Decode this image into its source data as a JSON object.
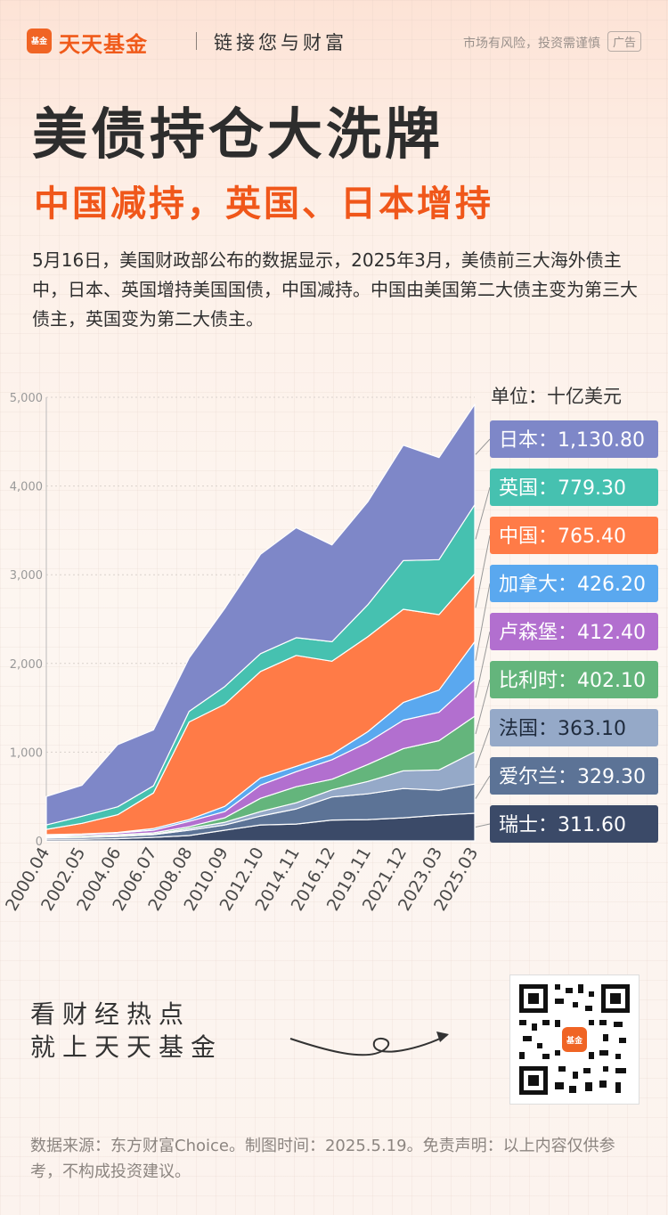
{
  "header": {
    "logo_text": "基金",
    "brand": "天天基金",
    "slogan": "链接您与财富",
    "risk_notice": "市场有风险，投资需谨慎",
    "ad_label": "广告"
  },
  "title": "美债持仓大洗牌",
  "subtitle": "中国减持，英国、日本增持",
  "description": "5月16日，美国财政部公布的数据显示，2025年3月，美债前三大海外债主中，日本、英国增持美国国债，中国减持。中国由美国第二大债主变为第三大债主，英国变为第二大债主。",
  "colors": {
    "japan": "#7e87c8",
    "uk": "#46c1b0",
    "china": "#ff7b47",
    "canada": "#5aa8ef",
    "luxembourg": "#b26fcf",
    "belgium": "#64b57c",
    "france": "#95a9c8",
    "ireland": "#5c7396",
    "switzerland": "#3b4a68"
  },
  "chart_data": {
    "type": "area",
    "stacked": true,
    "unit": "单位：十亿美元",
    "x": [
      "2000.04",
      "2002.05",
      "2004.06",
      "2006.07",
      "2008.08",
      "2010.09",
      "2012.10",
      "2014.11",
      "2016.12",
      "2019.11",
      "2021.12",
      "2023.03",
      "2025.03"
    ],
    "ylim": [
      0,
      5000
    ],
    "yticks": [
      "0",
      "1,000",
      "2,000",
      "3,000",
      "4,000",
      "5,000"
    ],
    "ytick_values": [
      0,
      1000,
      2000,
      3000,
      4000,
      5000
    ],
    "grid": true,
    "legend_position": "right",
    "series": [
      {
        "name": "瑞士",
        "key": "switzerland",
        "label_value": "311.60",
        "values": [
          20,
          18,
          25,
          40,
          60,
          120,
          180,
          190,
          235,
          240,
          260,
          290,
          311.6
        ]
      },
      {
        "name": "爱尔兰",
        "key": "ireland",
        "label_value": "329.30",
        "values": [
          15,
          20,
          25,
          30,
          60,
          60,
          100,
          170,
          260,
          290,
          330,
          280,
          329.3
        ]
      },
      {
        "name": "法国",
        "key": "france",
        "label_value": "363.10",
        "values": [
          5,
          5,
          5,
          5,
          20,
          30,
          50,
          70,
          80,
          140,
          200,
          230,
          363.1
        ]
      },
      {
        "name": "比利时",
        "key": "belgium",
        "label_value": "402.10",
        "values": [
          10,
          15,
          15,
          15,
          20,
          50,
          150,
          180,
          120,
          190,
          250,
          330,
          402.1
        ]
      },
      {
        "name": "卢森堡",
        "key": "luxembourg",
        "label_value": "412.40",
        "values": [
          10,
          15,
          20,
          30,
          60,
          70,
          150,
          170,
          220,
          250,
          320,
          320,
          412.4
        ]
      },
      {
        "name": "加拿大",
        "key": "canada",
        "label_value": "426.20",
        "values": [
          10,
          5,
          5,
          20,
          20,
          60,
          80,
          60,
          60,
          120,
          200,
          250,
          426.2
        ]
      },
      {
        "name": "中国",
        "key": "china",
        "label_value": "765.40",
        "values": [
          60,
          120,
          200,
          400,
          1100,
          1150,
          1200,
          1250,
          1050,
          1070,
          1050,
          850,
          765.4
        ]
      },
      {
        "name": "英国",
        "key": "uk",
        "label_value": "779.30",
        "values": [
          50,
          80,
          90,
          80,
          120,
          200,
          200,
          200,
          220,
          360,
          550,
          620,
          779.3
        ]
      },
      {
        "name": "日本",
        "key": "japan",
        "label_value": "1,130.80",
        "values": [
          320,
          350,
          700,
          630,
          600,
          880,
          1120,
          1240,
          1090,
          1160,
          1300,
          1150,
          1130.8
        ]
      }
    ]
  },
  "footer": {
    "cta_line1": "看财经热点",
    "cta_line2": "就上天天基金",
    "qr_logo_text": "基金",
    "source_text": "数据来源：东方财富Choice。制图时间：2025.5.19。免责声明：以上内容仅供参考，不构成投资建议。"
  }
}
